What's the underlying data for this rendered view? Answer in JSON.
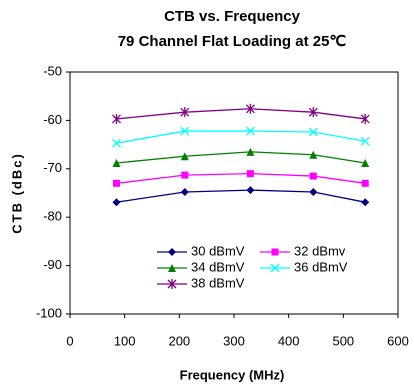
{
  "chart_data": {
    "type": "line",
    "title": "CTB vs. Frequency",
    "subtitle": "79 Channel Flat Loading at 25℃",
    "x_label": "Frequency (MHz)",
    "y_label": "CTB (dBc)",
    "x": [
      85,
      210,
      330,
      445,
      540
    ],
    "xlim": [
      0,
      600
    ],
    "xticks": [
      0,
      100,
      200,
      300,
      400,
      500,
      600
    ],
    "ylim": [
      -100,
      -50
    ],
    "yticks": [
      -100,
      -90,
      -80,
      -70,
      -60,
      -50
    ],
    "series": [
      {
        "name": "30 dBmV",
        "color": "#000080",
        "marker": "diamond",
        "values": [
          -76.9,
          -74.8,
          -74.4,
          -74.8,
          -76.9
        ]
      },
      {
        "name": "32 dBmv",
        "color": "#ff00ff",
        "marker": "square",
        "values": [
          -73,
          -71.3,
          -71,
          -71.5,
          -73
        ]
      },
      {
        "name": "34 dBmV",
        "color": "#008000",
        "marker": "triangle",
        "values": [
          -68.8,
          -67.4,
          -66.5,
          -67.1,
          -68.8
        ]
      },
      {
        "name": "36 dBmV",
        "color": "#00ffff",
        "marker": "x",
        "values": [
          -64.7,
          -62.2,
          -62.2,
          -62.4,
          -64.3
        ]
      },
      {
        "name": "38 dBmV",
        "color": "#800080",
        "marker": "star",
        "values": [
          -59.7,
          -58.3,
          -57.6,
          -58.3,
          -59.7
        ]
      }
    ]
  }
}
